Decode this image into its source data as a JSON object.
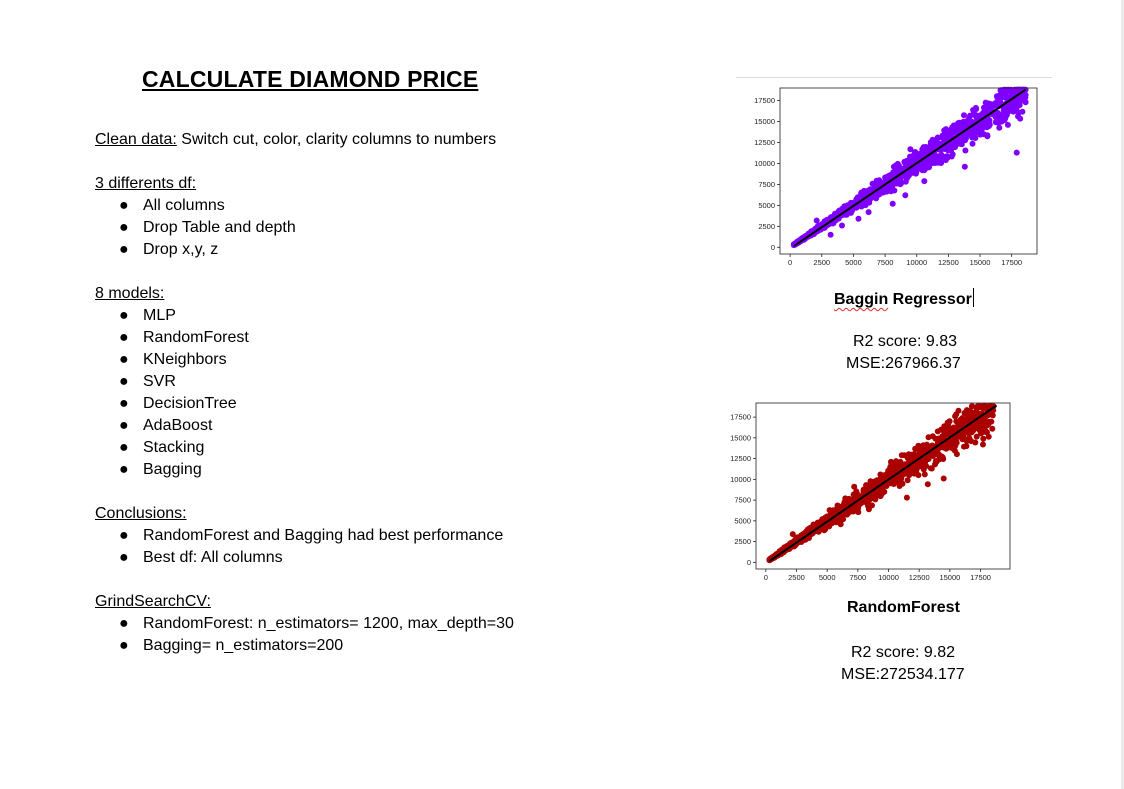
{
  "title": "CALCULATE DIAMOND PRICE",
  "clean_data": {
    "label": "Clean data:",
    "text": " Switch cut, color, clarity columns to numbers"
  },
  "dfs": {
    "label": "3 differents df:",
    "items": [
      "All columns",
      "Drop Table and depth",
      "Drop x,y, z"
    ]
  },
  "models": {
    "label": "8 models:",
    "items": [
      "MLP",
      "RandomForest",
      "KNeighbors",
      "SVR",
      "DecisionTree",
      "AdaBoost",
      "Stacking",
      "Bagging"
    ]
  },
  "conclusions": {
    "label": "Conclusions:",
    "items": [
      "RandomForest and Bagging had best performance",
      "Best df: All columns"
    ]
  },
  "gridsearch": {
    "label": "GrindSearchCV:",
    "items": [
      "RandomForest: n_estimators= 1200, max_depth=30",
      "Bagging= n_estimators=200"
    ]
  },
  "bagging_result": {
    "name_part1": "Baggin",
    "name_part2": " Regressor",
    "r2": "R2 score: 9.83",
    "mse": "MSE:267966.37"
  },
  "rf_result": {
    "name": "RandomForest",
    "r2": "R2 score: 9.82",
    "mse": "MSE:272534.177"
  },
  "chart_data": [
    {
      "type": "scatter",
      "title": "",
      "xlabel": "",
      "ylabel": "",
      "xlim": [
        -800,
        19500
      ],
      "ylim": [
        -800,
        19000
      ],
      "xticks": [
        0,
        2500,
        5000,
        7500,
        10000,
        12500,
        15000,
        17500
      ],
      "yticks": [
        0,
        2500,
        5000,
        7500,
        10000,
        12500,
        15000,
        17500
      ],
      "point_color": "#8000ff",
      "line_color": "#000000",
      "fit_line": {
        "x": [
          300,
          18600
        ],
        "y": [
          150,
          18800
        ]
      },
      "points": [
        [
          16100,
          16100
        ],
        [
          14600,
          13600
        ],
        [
          16600,
          17100
        ],
        [
          17900,
          11300
        ],
        [
          15300,
          13500
        ],
        [
          13800,
          9600
        ],
        [
          12300,
          10400
        ],
        [
          10600,
          7900
        ],
        [
          9100,
          6200
        ],
        [
          8100,
          5200
        ],
        [
          6200,
          4200
        ],
        [
          3200,
          1500
        ],
        [
          4100,
          2600
        ],
        [
          5400,
          3400
        ],
        [
          2100,
          3200
        ],
        [
          11600,
          10100
        ],
        [
          17200,
          14600
        ],
        [
          9500,
          11700
        ],
        [
          8200,
          9600
        ],
        [
          12800,
          14300
        ],
        [
          14700,
          16500
        ]
      ],
      "cloud": {
        "x_min": 300,
        "x_max": 18600,
        "spread": 0.09
      }
    },
    {
      "type": "scatter",
      "title": "",
      "xlabel": "",
      "ylabel": "",
      "xlim": [
        -800,
        19900
      ],
      "ylim": [
        -800,
        19200
      ],
      "xticks": [
        0,
        2500,
        5000,
        7500,
        10000,
        12500,
        15000,
        17500
      ],
      "yticks": [
        0,
        2500,
        5000,
        7500,
        10000,
        12500,
        15000,
        17500
      ],
      "point_color": "#aa0000",
      "line_color": "#000000",
      "fit_line": {
        "x": [
          300,
          18800
        ],
        "y": [
          150,
          18900
        ]
      },
      "points": [
        [
          15600,
          15900
        ],
        [
          13900,
          12100
        ],
        [
          14500,
          10100
        ],
        [
          16200,
          15900
        ],
        [
          12300,
          12400
        ],
        [
          10900,
          9200
        ],
        [
          9100,
          8400
        ],
        [
          8400,
          6400
        ],
        [
          6100,
          4600
        ],
        [
          4300,
          3700
        ],
        [
          2200,
          3400
        ],
        [
          1500,
          1800
        ],
        [
          17700,
          14200
        ],
        [
          11500,
          7800
        ],
        [
          13200,
          9400
        ],
        [
          7200,
          9100
        ],
        [
          10200,
          12100
        ],
        [
          5200,
          6300
        ]
      ],
      "cloud": {
        "x_min": 300,
        "x_max": 18600,
        "spread": 0.1
      }
    }
  ]
}
